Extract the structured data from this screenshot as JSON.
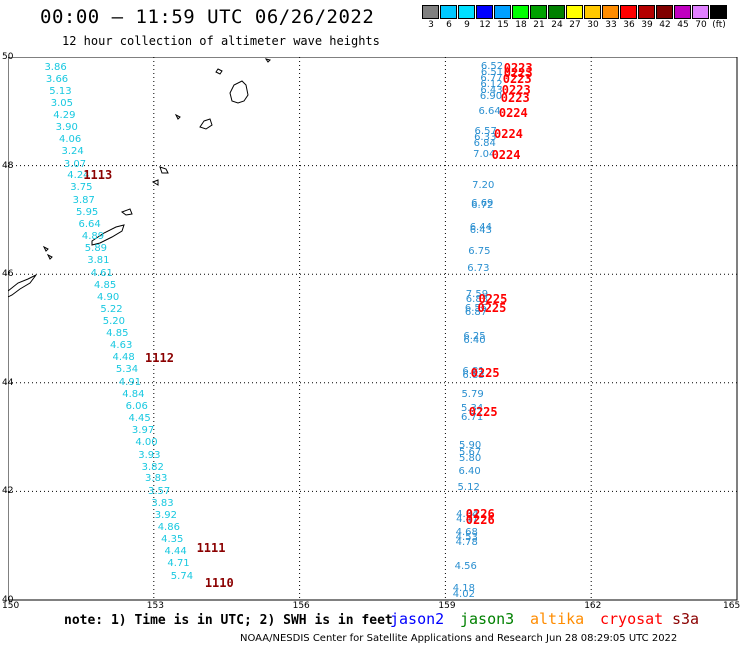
{
  "title": "00:00 – 11:59 UTC 06/26/2022",
  "subtitle": "12 hour collection of altimeter wave heights",
  "colorbar": {
    "colors": [
      "#808080",
      "#00c8ff",
      "#00e0ff",
      "#0000ff",
      "#00a0ff",
      "#00ff00",
      "#00a000",
      "#008000",
      "#ffff00",
      "#ffc800",
      "#ff8c00",
      "#ff0000",
      "#b40000",
      "#800000",
      "#c000c0",
      "#e080ff",
      "#000000"
    ],
    "labels": [
      "3",
      "6",
      "9",
      "12",
      "15",
      "18",
      "21",
      "24",
      "27",
      "30",
      "33",
      "36",
      "39",
      "42",
      "45",
      "70",
      "(ft)"
    ]
  },
  "map": {
    "lon_labels": [
      "150",
      "153",
      "156",
      "159",
      "162",
      "165"
    ],
    "lat_labels": [
      "50",
      "48",
      "46",
      "44",
      "42",
      "40"
    ]
  },
  "observations": [
    {
      "v": "3.86",
      "lon": 150.75,
      "lat": 49.8
    },
    {
      "v": "3.66",
      "lon": 150.78,
      "lat": 49.58
    },
    {
      "v": "5.13",
      "lon": 150.85,
      "lat": 49.36
    },
    {
      "v": "3.05",
      "lon": 150.88,
      "lat": 49.13
    },
    {
      "v": "4.29",
      "lon": 150.93,
      "lat": 48.91
    },
    {
      "v": "3.90",
      "lon": 150.98,
      "lat": 48.69
    },
    {
      "v": "4.06",
      "lon": 151.05,
      "lat": 48.47
    },
    {
      "v": "3.24",
      "lon": 151.1,
      "lat": 48.25
    },
    {
      "v": "3.07",
      "lon": 151.15,
      "lat": 48.02
    },
    {
      "v": "4.24",
      "lon": 151.22,
      "lat": 47.8
    },
    {
      "v": "3.75",
      "lon": 151.28,
      "lat": 47.58
    },
    {
      "v": "3.87",
      "lon": 151.33,
      "lat": 47.35
    },
    {
      "v": "5.95",
      "lon": 151.4,
      "lat": 47.13
    },
    {
      "v": "6.64",
      "lon": 151.45,
      "lat": 46.91
    },
    {
      "v": "4.89",
      "lon": 151.52,
      "lat": 46.68
    },
    {
      "v": "5.89",
      "lon": 151.58,
      "lat": 46.46
    },
    {
      "v": "3.81",
      "lon": 151.63,
      "lat": 46.24
    },
    {
      "v": "4.61",
      "lon": 151.7,
      "lat": 46.01
    },
    {
      "v": "4.85",
      "lon": 151.77,
      "lat": 45.79
    },
    {
      "v": "4.90",
      "lon": 151.83,
      "lat": 45.57
    },
    {
      "v": "5.22",
      "lon": 151.9,
      "lat": 45.34
    },
    {
      "v": "5.20",
      "lon": 151.95,
      "lat": 45.12
    },
    {
      "v": "4.85",
      "lon": 152.02,
      "lat": 44.9
    },
    {
      "v": "4.63",
      "lon": 152.1,
      "lat": 44.67
    },
    {
      "v": "4.48",
      "lon": 152.15,
      "lat": 44.45
    },
    {
      "v": "5.34",
      "lon": 152.22,
      "lat": 44.23
    },
    {
      "v": "4.91",
      "lon": 152.28,
      "lat": 44.0
    },
    {
      "v": "4.84",
      "lon": 152.35,
      "lat": 43.78
    },
    {
      "v": "6.06",
      "lon": 152.42,
      "lat": 43.56
    },
    {
      "v": "4.45",
      "lon": 152.48,
      "lat": 43.33
    },
    {
      "v": "3.97",
      "lon": 152.55,
      "lat": 43.11
    },
    {
      "v": "4.00",
      "lon": 152.62,
      "lat": 42.89
    },
    {
      "v": "3.93",
      "lon": 152.68,
      "lat": 42.66
    },
    {
      "v": "3.82",
      "lon": 152.75,
      "lat": 42.44
    },
    {
      "v": "3.83",
      "lon": 152.82,
      "lat": 42.22
    },
    {
      "v": "3.57",
      "lon": 152.88,
      "lat": 41.99
    },
    {
      "v": "3.83",
      "lon": 152.95,
      "lat": 41.77
    },
    {
      "v": "3.92",
      "lon": 153.02,
      "lat": 41.55
    },
    {
      "v": "4.86",
      "lon": 153.08,
      "lat": 41.32
    },
    {
      "v": "4.35",
      "lon": 153.15,
      "lat": 41.1
    },
    {
      "v": "4.44",
      "lon": 153.22,
      "lat": 40.88
    },
    {
      "v": "4.71",
      "lon": 153.28,
      "lat": 40.66
    },
    {
      "v": "5.74",
      "lon": 153.35,
      "lat": 40.43
    },
    {
      "v": "6.52",
      "lon": 159.73,
      "lat": 49.82
    },
    {
      "v": "6.51",
      "lon": 159.73,
      "lat": 49.71
    },
    {
      "v": "6.77",
      "lon": 159.72,
      "lat": 49.6
    },
    {
      "v": "6.12",
      "lon": 159.72,
      "lat": 49.49
    },
    {
      "v": "6.43",
      "lon": 159.72,
      "lat": 49.38
    },
    {
      "v": "6.90",
      "lon": 159.71,
      "lat": 49.27
    },
    {
      "v": "6.64",
      "lon": 159.68,
      "lat": 48.98
    },
    {
      "v": "6.57",
      "lon": 159.6,
      "lat": 48.62
    },
    {
      "v": "6.33",
      "lon": 159.59,
      "lat": 48.51
    },
    {
      "v": "6.84",
      "lon": 159.58,
      "lat": 48.4
    },
    {
      "v": "7.04",
      "lon": 159.57,
      "lat": 48.2
    },
    {
      "v": "7.20",
      "lon": 159.55,
      "lat": 47.62
    },
    {
      "v": "6.69",
      "lon": 159.53,
      "lat": 47.3
    },
    {
      "v": "6.72",
      "lon": 159.53,
      "lat": 47.25
    },
    {
      "v": "6.44",
      "lon": 159.5,
      "lat": 46.86
    },
    {
      "v": "6.43",
      "lon": 159.5,
      "lat": 46.8
    },
    {
      "v": "6.75",
      "lon": 159.47,
      "lat": 46.4
    },
    {
      "v": "6.73",
      "lon": 159.45,
      "lat": 46.1
    },
    {
      "v": "7.59",
      "lon": 159.42,
      "lat": 45.62
    },
    {
      "v": "6.83",
      "lon": 159.42,
      "lat": 45.52
    },
    {
      "v": "6.55",
      "lon": 159.4,
      "lat": 45.36
    },
    {
      "v": "6.87",
      "lon": 159.4,
      "lat": 45.28
    },
    {
      "v": "6.25",
      "lon": 159.37,
      "lat": 44.85
    },
    {
      "v": "6.40",
      "lon": 159.37,
      "lat": 44.77
    },
    {
      "v": "6.81",
      "lon": 159.35,
      "lat": 44.2
    },
    {
      "v": "6.83",
      "lon": 159.35,
      "lat": 44.12
    },
    {
      "v": "5.79",
      "lon": 159.33,
      "lat": 43.78
    },
    {
      "v": "5.34",
      "lon": 159.32,
      "lat": 43.52
    },
    {
      "v": "6.71",
      "lon": 159.32,
      "lat": 43.36
    },
    {
      "v": "5.90",
      "lon": 159.28,
      "lat": 42.84
    },
    {
      "v": "5.67",
      "lon": 159.28,
      "lat": 42.71
    },
    {
      "v": "5.80",
      "lon": 159.28,
      "lat": 42.6
    },
    {
      "v": "6.40",
      "lon": 159.27,
      "lat": 42.36
    },
    {
      "v": "5.12",
      "lon": 159.25,
      "lat": 42.07
    },
    {
      "v": "4.84",
      "lon": 159.22,
      "lat": 41.57
    },
    {
      "v": "4.47",
      "lon": 159.22,
      "lat": 41.48
    },
    {
      "v": "4.68",
      "lon": 159.21,
      "lat": 41.23
    },
    {
      "v": "4.53",
      "lon": 159.21,
      "lat": 41.15
    },
    {
      "v": "4.78",
      "lon": 159.21,
      "lat": 41.05
    },
    {
      "v": "4.56",
      "lon": 159.19,
      "lat": 40.6
    },
    {
      "v": "4.18",
      "lon": 159.15,
      "lat": 40.21
    },
    {
      "v": "4.02",
      "lon": 159.15,
      "lat": 40.1
    }
  ],
  "passes": [
    {
      "label": "1113",
      "color": "#8b0000",
      "lon": 151.55,
      "lat": 47.83
    },
    {
      "label": "1112",
      "color": "#8b0000",
      "lon": 152.82,
      "lat": 44.45
    },
    {
      "label": "1111",
      "color": "#8b0000",
      "lon": 153.88,
      "lat": 40.95
    },
    {
      "label": "1110",
      "color": "#8b0000",
      "lon": 154.05,
      "lat": 40.32
    },
    {
      "label": "0223",
      "color": "#ff0000",
      "lon": 160.2,
      "lat": 49.8
    },
    {
      "label": "0223",
      "color": "#ff0000",
      "lon": 160.2,
      "lat": 49.71
    },
    {
      "label": "0223",
      "color": "#ff0000",
      "lon": 160.18,
      "lat": 49.6
    },
    {
      "label": "0223",
      "color": "#ff0000",
      "lon": 160.16,
      "lat": 49.4
    },
    {
      "label": "0223",
      "color": "#ff0000",
      "lon": 160.14,
      "lat": 49.24
    },
    {
      "label": "0224",
      "color": "#ff0000",
      "lon": 160.1,
      "lat": 48.96
    },
    {
      "label": "0224",
      "color": "#ff0000",
      "lon": 160.0,
      "lat": 48.58
    },
    {
      "label": "0224",
      "color": "#ff0000",
      "lon": 159.95,
      "lat": 48.19
    },
    {
      "label": "0225",
      "color": "#ff0000",
      "lon": 159.68,
      "lat": 45.54
    },
    {
      "label": "0225",
      "color": "#ff0000",
      "lon": 159.66,
      "lat": 45.38
    },
    {
      "label": "0225",
      "color": "#ff0000",
      "lon": 159.52,
      "lat": 44.18
    },
    {
      "label": "0225",
      "color": "#ff0000",
      "lon": 159.48,
      "lat": 43.47
    },
    {
      "label": "0226",
      "color": "#ff0000",
      "lon": 159.42,
      "lat": 41.58
    },
    {
      "label": "0226",
      "color": "#ff0000",
      "lon": 159.42,
      "lat": 41.48
    }
  ],
  "note": "note: 1) Time is in UTC; 2) SWH is in feet",
  "missions": [
    {
      "name": "jason2",
      "color": "#0000ff"
    },
    {
      "name": "jason3",
      "color": "#008000"
    },
    {
      "name": "altika",
      "color": "#ff8c00"
    },
    {
      "name": "cryosat",
      "color": "#ff0000"
    },
    {
      "name": "s3a",
      "color": "#8b0000"
    }
  ],
  "footer": "NOAA/NESDIS Center for Satellite Applications and Research   Jun 28 08:29:05 UTC 2022"
}
